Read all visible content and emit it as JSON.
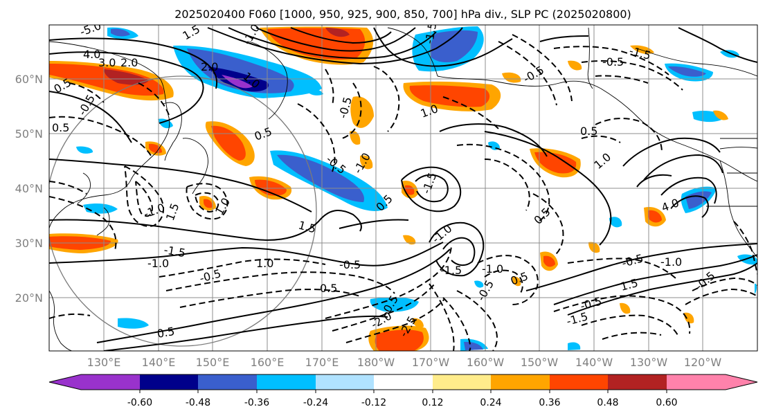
{
  "title": "2025020400 F060 [1000, 950, 925, 900, 850, 700] hPa div., SLP PC (2025020800)",
  "lat_labels": [
    "60°N",
    "50°N",
    "40°N",
    "30°N",
    "20°N"
  ],
  "lon_labels": [
    "130°E",
    "140°E",
    "150°E",
    "160°E",
    "170°E",
    "180°W",
    "170°W",
    "160°W",
    "150°W",
    "140°W",
    "130°W",
    "120°W"
  ],
  "colorbar": {
    "tick_labels": [
      "-0.60",
      "-0.48",
      "-0.36",
      "-0.24",
      "-0.12",
      "0.12",
      "0.24",
      "0.36",
      "0.48",
      "0.60"
    ],
    "colors": [
      "#9932cc",
      "#00008b",
      "#3a5fcd",
      "#00bfff",
      "#b0e2ff",
      "#ffffff",
      "#ffec8b",
      "#ffa500",
      "#ff4500",
      "#b22222",
      "#ff82ab"
    ]
  },
  "contour_labels": [
    "-5.0",
    "4.0",
    "3.0",
    "2.0",
    "0.5",
    "-0.5",
    "1.5",
    "2.0",
    "-1.0",
    "-1.5",
    "0.5",
    "1.0",
    "-0.5",
    "0.5",
    "-0.5",
    "-1.0",
    "-1.5",
    "0.5",
    "-0.5",
    "0.5",
    "1.0",
    "0.5",
    "-0.5",
    "1.0",
    "-1.5",
    "1.5",
    "-1.0",
    "1.0",
    "-1.5",
    "-1.0",
    "1.0",
    "-0.5",
    "-0.5",
    "0.5",
    "1.5",
    "-2.0",
    "-0.5",
    "0.5",
    "-2.5",
    "-1.0",
    "-1.5",
    "-1.0",
    "-0.5",
    "0.5",
    "4.0",
    "-0.5",
    "1.5",
    "-1.5",
    "-0.5",
    "-1.0",
    "-0.5"
  ]
}
